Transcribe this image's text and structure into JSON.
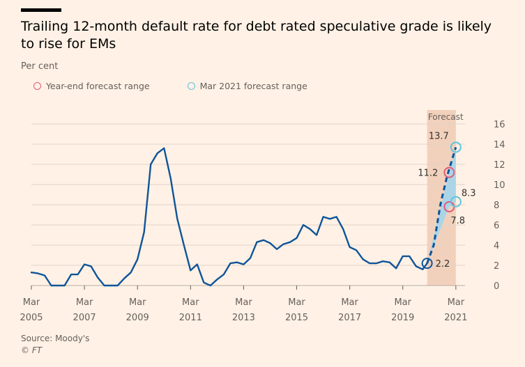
{
  "title": "Trailing 12-month default rate for debt rated speculative grade is likely to rise for EMs",
  "subtitle": "Per cent",
  "legend": [
    {
      "label": "Year-end forecast range",
      "color": "#e5587a"
    },
    {
      "label": "Mar 2021 forecast range",
      "color": "#5ec4de"
    }
  ],
  "source": "Source: Moody's",
  "copyright": "© FT",
  "colors": {
    "line": "#0f5499",
    "forecast_band": "#f2d1bc",
    "forecast_fill": "#9fd6ee",
    "grid": "#e0d4c8",
    "background": "#fff1e5"
  },
  "chart_data": {
    "type": "line",
    "title": "Trailing 12-month default rate for debt rated speculative grade is likely to rise for EMs",
    "ylabel": "Per cent",
    "ylim": [
      0,
      16
    ],
    "yticks": [
      0,
      2,
      4,
      6,
      8,
      10,
      12,
      14,
      16
    ],
    "xlim": [
      "2005-03",
      "2021-04"
    ],
    "xticks": [
      {
        "month": "Mar",
        "year": "2005",
        "date": "2005-03"
      },
      {
        "month": "Mar",
        "year": "2007",
        "date": "2007-03"
      },
      {
        "month": "Mar",
        "year": "2009",
        "date": "2009-03"
      },
      {
        "month": "Mar",
        "year": "2011",
        "date": "2011-03"
      },
      {
        "month": "Mar",
        "year": "2013",
        "date": "2013-03"
      },
      {
        "month": "Mar",
        "year": "2015",
        "date": "2015-03"
      },
      {
        "month": "Mar",
        "year": "2017",
        "date": "2017-03"
      },
      {
        "month": "Mar",
        "year": "2019",
        "date": "2019-03"
      },
      {
        "month": "Mar",
        "year": "2021",
        "date": "2021-03"
      }
    ],
    "grid": true,
    "y_axis_side": "right",
    "forecast_region": {
      "label": "Forecast",
      "start": "2020-02",
      "end": "2021-03"
    },
    "series": [
      {
        "name": "",
        "style": "solid",
        "x": [
          "2005-03",
          "2005-06",
          "2005-09",
          "2005-12",
          "2006-03",
          "2006-06",
          "2006-09",
          "2006-12",
          "2007-03",
          "2007-06",
          "2007-09",
          "2007-12",
          "2008-03",
          "2008-06",
          "2008-09",
          "2008-12",
          "2009-03",
          "2009-06",
          "2009-09",
          "2009-12",
          "2010-03",
          "2010-06",
          "2010-09",
          "2010-12",
          "2011-03",
          "2011-06",
          "2011-09",
          "2011-12",
          "2012-03",
          "2012-06",
          "2012-09",
          "2012-12",
          "2013-03",
          "2013-06",
          "2013-09",
          "2013-12",
          "2014-03",
          "2014-06",
          "2014-09",
          "2014-12",
          "2015-03",
          "2015-06",
          "2015-09",
          "2015-12",
          "2016-03",
          "2016-06",
          "2016-09",
          "2016-12",
          "2017-03",
          "2017-06",
          "2017-09",
          "2017-12",
          "2018-03",
          "2018-06",
          "2018-09",
          "2018-12",
          "2019-03",
          "2019-06",
          "2019-09",
          "2019-12",
          "2020-02"
        ],
        "y": [
          1.3,
          1.2,
          1.0,
          0.0,
          0.0,
          0.0,
          1.1,
          1.1,
          2.1,
          1.9,
          0.8,
          0.0,
          0.0,
          0.0,
          0.7,
          1.3,
          2.6,
          5.3,
          12.0,
          13.1,
          13.6,
          10.6,
          6.6,
          4.0,
          1.5,
          2.1,
          0.3,
          0.0,
          0.6,
          1.1,
          2.2,
          2.3,
          2.1,
          2.7,
          4.3,
          4.5,
          4.2,
          3.6,
          4.1,
          4.3,
          4.7,
          6.0,
          5.6,
          5.0,
          6.8,
          6.6,
          6.8,
          5.6,
          3.8,
          3.5,
          2.6,
          2.2,
          2.2,
          2.4,
          2.3,
          1.7,
          2.9,
          2.9,
          1.9,
          1.6,
          2.2
        ]
      },
      {
        "name": "",
        "style": "dashed",
        "x": [
          "2020-02",
          "2020-05",
          "2020-08",
          "2020-11",
          "2021-03"
        ],
        "y": [
          2.2,
          4.0,
          8.0,
          10.8,
          13.7
        ]
      }
    ],
    "annotations": [
      {
        "label": "2.2",
        "date": "2020-02",
        "value": 2.2,
        "marker": "now",
        "color": "#0f5499"
      },
      {
        "label": "11.2",
        "date": "2020-12",
        "value": 11.2,
        "marker": "year-end",
        "color": "#e5587a"
      },
      {
        "label": "7.8",
        "date": "2020-12",
        "value": 7.8,
        "marker": "year-end",
        "color": "#e5587a"
      },
      {
        "label": "13.7",
        "date": "2021-03",
        "value": 13.7,
        "marker": "mar-2021",
        "color": "#5ec4de"
      },
      {
        "label": "8.3",
        "date": "2021-03",
        "value": 8.3,
        "marker": "mar-2021",
        "color": "#5ec4de"
      }
    ]
  }
}
